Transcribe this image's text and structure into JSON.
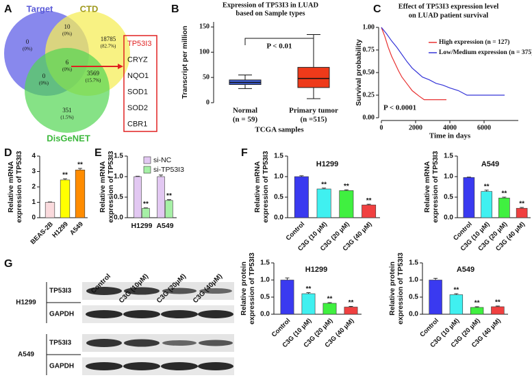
{
  "panel_labels": [
    "A",
    "B",
    "C",
    "D",
    "E",
    "F",
    "G"
  ],
  "venn": {
    "sets": [
      "Target",
      "CTD",
      "DisGeNET"
    ],
    "regions": [
      {
        "count": 0,
        "percent": "(0%)"
      },
      {
        "count": 10,
        "percent": "(0%)"
      },
      {
        "count": 18785,
        "percent": "(82.7%)"
      },
      {
        "count": 0,
        "percent": "(0%)"
      },
      {
        "count": 6,
        "percent": "(0%)"
      },
      {
        "count": 3569,
        "percent": "(15.7%)"
      },
      {
        "count": 351,
        "percent": "(1.5%)"
      }
    ],
    "genes": [
      "TP53I3",
      "CRYZ",
      "NQO1",
      "SOD1",
      "SOD2",
      "CBR1"
    ]
  },
  "blot": {
    "columns": [
      "Control",
      "C3G (10μM)",
      "C3G (20μM)",
      "C3G (40μM)"
    ],
    "cells": [
      "H1299",
      "A549"
    ],
    "proteins": [
      "TP53I3",
      "GAPDH"
    ]
  },
  "chart_data": [
    {
      "type": "box",
      "title": [
        "Expression of TP53I3 in LUAD",
        "based on Sample types"
      ],
      "ylabel": [
        "Transcript per million"
      ],
      "xlabel": "TCGA samples",
      "categories": [
        "Normal",
        "Primary tumor"
      ],
      "category_notes": [
        "(n = 59)",
        "(n =515)"
      ],
      "annotation": "P < 0.01",
      "colors": [
        "#3f5fd6",
        "#ee3a1a"
      ],
      "boxes": [
        {
          "min": 28,
          "q1": 36,
          "median": 40,
          "q3": 45,
          "max": 55
        },
        {
          "min": 8,
          "q1": 30,
          "median": 48,
          "q3": 70,
          "max": 135
        }
      ],
      "ylim": [
        0,
        160
      ],
      "yticks": [
        0,
        50,
        100,
        150
      ]
    },
    {
      "type": "km",
      "title": [
        "Effect of TP53I3 expression level",
        "on LUAD patient survival"
      ],
      "ylabel": [
        "Survival probability"
      ],
      "xlabel": "Time in days",
      "annotation": "P < 0.0001",
      "series": [
        {
          "name": "High expression (n = 127)",
          "color": "#e83030",
          "x": [
            0,
            200,
            400,
            600,
            800,
            1000,
            1200,
            1400,
            1600,
            1800,
            2000,
            2200,
            2500,
            3000,
            3800
          ],
          "values": [
            1,
            0.9,
            0.78,
            0.68,
            0.6,
            0.52,
            0.45,
            0.4,
            0.35,
            0.3,
            0.27,
            0.24,
            0.2,
            0.2,
            0.2
          ]
        },
        {
          "name": "Low/Medium expression (n = 375)",
          "color": "#3535d8",
          "x": [
            0,
            300,
            600,
            900,
            1200,
            1500,
            1800,
            2100,
            2400,
            2800,
            3200,
            3600,
            4000,
            4500,
            5000,
            6000,
            7200
          ],
          "values": [
            1,
            0.93,
            0.85,
            0.78,
            0.7,
            0.62,
            0.55,
            0.5,
            0.45,
            0.42,
            0.38,
            0.36,
            0.33,
            0.3,
            0.25,
            0.25,
            0.25
          ]
        }
      ],
      "xlim": [
        0,
        8000
      ],
      "xticks": [
        0,
        2000,
        4000,
        6000
      ],
      "ylim": [
        0,
        1
      ],
      "yticks": [
        {
          "value": 0,
          "label": "0.00"
        },
        0.25,
        {
          "value": 0.5,
          "label": "0.50"
        },
        0.75,
        {
          "value": 1,
          "label": "1.00"
        }
      ]
    },
    {
      "type": "bar",
      "ylabel": [
        "Relative mRNA",
        "expression of TP53I3"
      ],
      "categories": [
        "BEAS-2B",
        "H1299",
        "A549"
      ],
      "values": [
        1,
        2.45,
        3.1
      ],
      "errors": [
        0.02,
        0.08,
        0.1
      ],
      "colors": [
        "#fadadd",
        "#ffff00",
        "#ff8c00"
      ],
      "significance": [
        null,
        "**",
        "**"
      ],
      "ylim": [
        0,
        4
      ],
      "yticks": [
        0,
        1,
        2,
        3,
        4
      ]
    },
    {
      "type": "grouped_bar",
      "ylabel": [
        "Relative mRNA",
        "expression of TP53I3"
      ],
      "categories": [
        "H1299",
        "A549"
      ],
      "series": [
        {
          "name": "si-NC",
          "color": "#e2c8f2",
          "values": [
            1.0,
            1.0
          ],
          "errors": [
            0.01,
            0.04
          ]
        },
        {
          "name": "si-TP53I3",
          "color": "#a6f0a6",
          "values": [
            0.23,
            0.42
          ],
          "errors": [
            0.01,
            0.02
          ],
          "significance": [
            "**",
            "**"
          ]
        }
      ],
      "ylim": [
        0,
        1.5
      ],
      "yticks": [
        {
          "value": 0,
          "label": "0.0"
        },
        0.5,
        {
          "value": 1,
          "label": "1.0"
        },
        1.5
      ]
    },
    {
      "type": "bar",
      "title": "H1299",
      "ylabel": [
        "Relative mRNA",
        "expression of TP53I3"
      ],
      "categories": [
        "Control",
        "C3G (10 μM)",
        "C3G (20 μM)",
        "C3G (40 μM)"
      ],
      "values": [
        1.0,
        0.7,
        0.66,
        0.31
      ],
      "errors": [
        0.02,
        0.02,
        0.02,
        0.02
      ],
      "colors": [
        "#3a3af0",
        "#40f0f0",
        "#40f040",
        "#f04040"
      ],
      "significance": [
        null,
        "**",
        "**",
        "**"
      ],
      "ylim": [
        0,
        1.5
      ],
      "yticks": [
        {
          "value": 0,
          "label": "0.0"
        },
        0.5,
        {
          "value": 1,
          "label": "1.0"
        },
        1.5
      ]
    },
    {
      "type": "bar",
      "title": "A549",
      "ylabel": [
        "Relative mRNA",
        "expression of TP53I3"
      ],
      "categories": [
        "Control",
        "C3G (10 μM)",
        "C3G (20 μM)",
        "C3G (40 μM)"
      ],
      "values": [
        0.98,
        0.64,
        0.48,
        0.23
      ],
      "errors": [
        0.01,
        0.03,
        0.02,
        0.02
      ],
      "colors": [
        "#3a3af0",
        "#40f0f0",
        "#40f040",
        "#f04040"
      ],
      "significance": [
        null,
        "**",
        "**",
        "**"
      ],
      "ylim": [
        0,
        1.5
      ],
      "yticks": [
        {
          "value": 0,
          "label": "0.0"
        },
        0.5,
        {
          "value": 1,
          "label": "1.0"
        },
        1.5
      ]
    },
    {
      "type": "bar",
      "title": "H1299",
      "ylabel": [
        "Relative protein",
        "expression of TP53I3"
      ],
      "categories": [
        "Control",
        "C3G (10 μM)",
        "C3G (20 μM)",
        "C3G (40 μM)"
      ],
      "values": [
        1.0,
        0.6,
        0.32,
        0.21
      ],
      "errors": [
        0.06,
        0.03,
        0.02,
        0.02
      ],
      "colors": [
        "#3a3af0",
        "#40f0f0",
        "#40f040",
        "#f04040"
      ],
      "significance": [
        null,
        "**",
        "**",
        "**"
      ],
      "ylim": [
        0,
        1.5
      ],
      "yticks": [
        {
          "value": 0,
          "label": "0.0"
        },
        0.5,
        {
          "value": 1,
          "label": "1.0"
        },
        1.5
      ]
    },
    {
      "type": "bar",
      "title": "A549",
      "ylabel": [
        "Relative protein",
        "expression of TP53I3"
      ],
      "categories": [
        "Control",
        "C3G (10 μM)",
        "C3G (20 μM)",
        "C3G (40 μM)"
      ],
      "values": [
        1.0,
        0.57,
        0.2,
        0.22
      ],
      "errors": [
        0.05,
        0.03,
        0.02,
        0.02
      ],
      "colors": [
        "#3a3af0",
        "#40f0f0",
        "#40f040",
        "#f04040"
      ],
      "significance": [
        null,
        "**",
        "**",
        "**"
      ],
      "ylim": [
        0,
        1.5
      ],
      "yticks": [
        {
          "value": 0,
          "label": "0.0"
        },
        0.5,
        {
          "value": 1,
          "label": "1.0"
        },
        1.5
      ]
    }
  ]
}
